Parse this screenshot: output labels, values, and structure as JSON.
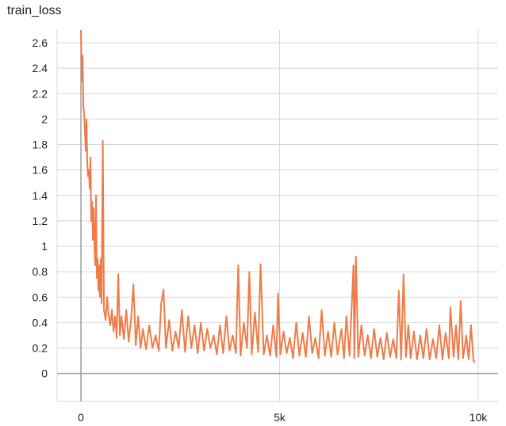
{
  "chart_data": {
    "type": "line",
    "title": "train_loss",
    "xlabel": "",
    "ylabel": "",
    "xlim": [
      -600,
      10500
    ],
    "ylim": [
      -0.22,
      2.7
    ],
    "x_ticks": [
      {
        "value": 0,
        "label": "0"
      },
      {
        "value": 5000,
        "label": "5k"
      },
      {
        "value": 10000,
        "label": "10k"
      }
    ],
    "y_ticks": [
      {
        "value": 0,
        "label": "0"
      },
      {
        "value": 0.2,
        "label": "0.2"
      },
      {
        "value": 0.4,
        "label": "0.4"
      },
      {
        "value": 0.6,
        "label": "0.6"
      },
      {
        "value": 0.8,
        "label": "0.8"
      },
      {
        "value": 1.0,
        "label": "1"
      },
      {
        "value": 1.2,
        "label": "1.2"
      },
      {
        "value": 1.4,
        "label": "1.4"
      },
      {
        "value": 1.6,
        "label": "1.6"
      },
      {
        "value": 1.8,
        "label": "1.8"
      },
      {
        "value": 2.0,
        "label": "2"
      },
      {
        "value": 2.2,
        "label": "2.2"
      },
      {
        "value": 2.4,
        "label": "2.4"
      },
      {
        "value": 2.6,
        "label": "2.6"
      }
    ],
    "grid": true,
    "series": [
      {
        "color": "#f07b47",
        "points": [
          [
            0,
            2.7
          ],
          [
            20,
            2.3
          ],
          [
            40,
            2.5
          ],
          [
            60,
            2.1
          ],
          [
            80,
            2.05
          ],
          [
            100,
            1.9
          ],
          [
            120,
            1.75
          ],
          [
            140,
            2.0
          ],
          [
            160,
            1.65
          ],
          [
            180,
            1.55
          ],
          [
            200,
            1.6
          ],
          [
            220,
            1.45
          ],
          [
            240,
            1.7
          ],
          [
            260,
            1.2
          ],
          [
            280,
            1.35
          ],
          [
            300,
            1.05
          ],
          [
            320,
            1.3
          ],
          [
            340,
            1.0
          ],
          [
            360,
            0.85
          ],
          [
            380,
            1.4
          ],
          [
            400,
            0.75
          ],
          [
            420,
            0.9
          ],
          [
            440,
            0.65
          ],
          [
            460,
            0.85
          ],
          [
            480,
            0.6
          ],
          [
            500,
            0.9
          ],
          [
            520,
            0.55
          ],
          [
            550,
            1.83
          ],
          [
            580,
            0.5
          ],
          [
            620,
            0.42
          ],
          [
            660,
            0.6
          ],
          [
            700,
            0.45
          ],
          [
            740,
            0.38
          ],
          [
            780,
            0.5
          ],
          [
            820,
            0.33
          ],
          [
            860,
            0.45
          ],
          [
            900,
            0.28
          ],
          [
            940,
            0.78
          ],
          [
            980,
            0.3
          ],
          [
            1020,
            0.45
          ],
          [
            1080,
            0.27
          ],
          [
            1140,
            0.5
          ],
          [
            1200,
            0.25
          ],
          [
            1260,
            0.42
          ],
          [
            1320,
            0.7
          ],
          [
            1380,
            0.22
          ],
          [
            1440,
            0.45
          ],
          [
            1500,
            0.2
          ],
          [
            1560,
            0.35
          ],
          [
            1640,
            0.19
          ],
          [
            1720,
            0.38
          ],
          [
            1800,
            0.2
          ],
          [
            1880,
            0.3
          ],
          [
            1960,
            0.18
          ],
          [
            2020,
            0.55
          ],
          [
            2080,
            0.66
          ],
          [
            2140,
            0.2
          ],
          [
            2220,
            0.42
          ],
          [
            2300,
            0.18
          ],
          [
            2380,
            0.33
          ],
          [
            2460,
            0.2
          ],
          [
            2540,
            0.5
          ],
          [
            2620,
            0.17
          ],
          [
            2700,
            0.45
          ],
          [
            2780,
            0.2
          ],
          [
            2860,
            0.38
          ],
          [
            2940,
            0.16
          ],
          [
            3020,
            0.4
          ],
          [
            3100,
            0.18
          ],
          [
            3180,
            0.35
          ],
          [
            3260,
            0.2
          ],
          [
            3340,
            0.3
          ],
          [
            3420,
            0.15
          ],
          [
            3500,
            0.38
          ],
          [
            3580,
            0.16
          ],
          [
            3660,
            0.45
          ],
          [
            3740,
            0.18
          ],
          [
            3820,
            0.3
          ],
          [
            3900,
            0.16
          ],
          [
            3960,
            0.85
          ],
          [
            4020,
            0.14
          ],
          [
            4100,
            0.4
          ],
          [
            4180,
            0.2
          ],
          [
            4240,
            0.8
          ],
          [
            4300,
            0.15
          ],
          [
            4380,
            0.48
          ],
          [
            4460,
            0.17
          ],
          [
            4520,
            0.86
          ],
          [
            4600,
            0.15
          ],
          [
            4680,
            0.3
          ],
          [
            4760,
            0.14
          ],
          [
            4840,
            0.38
          ],
          [
            4920,
            0.13
          ],
          [
            4960,
            0.63
          ],
          [
            5020,
            0.15
          ],
          [
            5100,
            0.33
          ],
          [
            5180,
            0.16
          ],
          [
            5260,
            0.28
          ],
          [
            5340,
            0.12
          ],
          [
            5420,
            0.4
          ],
          [
            5500,
            0.14
          ],
          [
            5580,
            0.32
          ],
          [
            5660,
            0.13
          ],
          [
            5740,
            0.45
          ],
          [
            5820,
            0.16
          ],
          [
            5900,
            0.28
          ],
          [
            5980,
            0.12
          ],
          [
            6060,
            0.5
          ],
          [
            6140,
            0.14
          ],
          [
            6220,
            0.33
          ],
          [
            6300,
            0.13
          ],
          [
            6380,
            0.4
          ],
          [
            6460,
            0.15
          ],
          [
            6560,
            0.35
          ],
          [
            6620,
            0.12
          ],
          [
            6680,
            0.45
          ],
          [
            6760,
            0.14
          ],
          [
            6860,
            0.85
          ],
          [
            6880,
            0.12
          ],
          [
            6920,
            0.92
          ],
          [
            6980,
            0.13
          ],
          [
            7060,
            0.38
          ],
          [
            7140,
            0.14
          ],
          [
            7220,
            0.3
          ],
          [
            7300,
            0.12
          ],
          [
            7380,
            0.35
          ],
          [
            7460,
            0.13
          ],
          [
            7540,
            0.28
          ],
          [
            7620,
            0.11
          ],
          [
            7700,
            0.32
          ],
          [
            7780,
            0.13
          ],
          [
            7860,
            0.27
          ],
          [
            7940,
            0.12
          ],
          [
            8000,
            0.65
          ],
          [
            8060,
            0.11
          ],
          [
            8120,
            0.78
          ],
          [
            8180,
            0.13
          ],
          [
            8240,
            0.38
          ],
          [
            8300,
            0.12
          ],
          [
            8380,
            0.33
          ],
          [
            8460,
            0.11
          ],
          [
            8540,
            0.3
          ],
          [
            8620,
            0.12
          ],
          [
            8700,
            0.35
          ],
          [
            8780,
            0.11
          ],
          [
            8860,
            0.27
          ],
          [
            8940,
            0.12
          ],
          [
            9020,
            0.38
          ],
          [
            9100,
            0.11
          ],
          [
            9180,
            0.32
          ],
          [
            9260,
            0.12
          ],
          [
            9300,
            0.52
          ],
          [
            9380,
            0.13
          ],
          [
            9440,
            0.38
          ],
          [
            9500,
            0.11
          ],
          [
            9560,
            0.57
          ],
          [
            9620,
            0.12
          ],
          [
            9700,
            0.3
          ],
          [
            9760,
            0.11
          ],
          [
            9820,
            0.38
          ],
          [
            9880,
            0.1
          ],
          [
            9920,
            0.09
          ]
        ]
      }
    ]
  }
}
